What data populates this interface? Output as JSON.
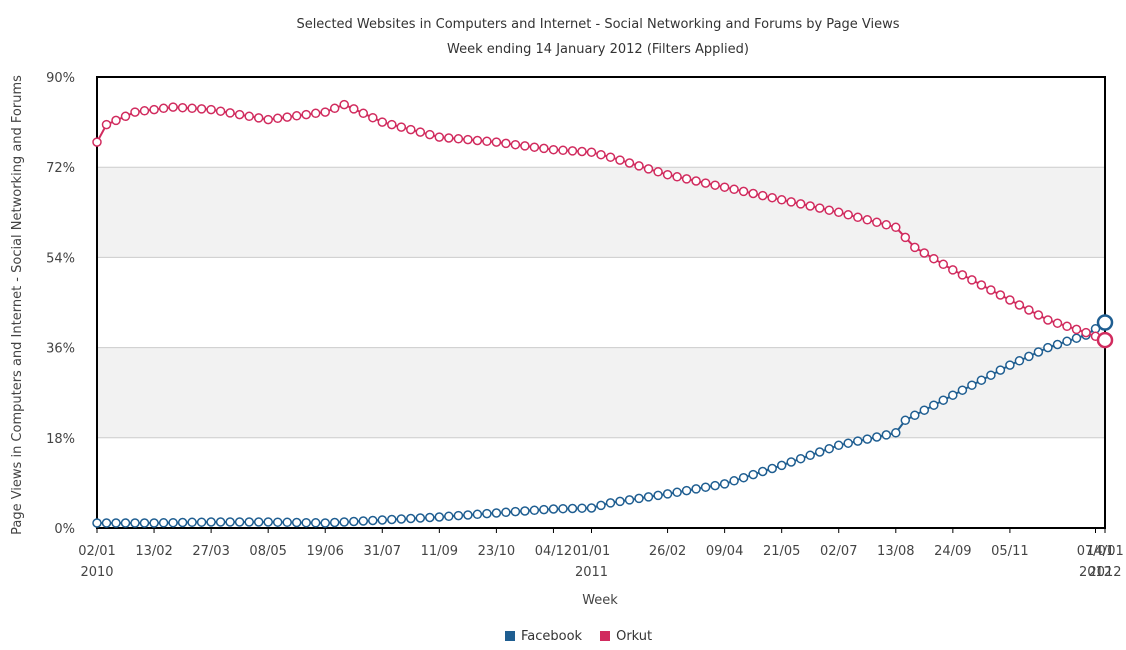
{
  "chart_data": {
    "type": "line",
    "title": "Selected Websites in Computers and Internet - Social Networking and Forums by Page Views",
    "subtitle": "Week ending 14 January 2012 (Filters Applied)",
    "xlabel": "Week",
    "ylabel": "Page Views in Computers and Internet - Social Networking and Forums",
    "ylim": [
      0,
      90
    ],
    "y_ticks": [
      "0%",
      "18%",
      "36%",
      "54%",
      "72%",
      "90%"
    ],
    "x_range": [
      "2010-01-02",
      "2012-01-14"
    ],
    "x_ticks": [
      {
        "date": "2010-01-02",
        "label": "02/01",
        "sub": "2010"
      },
      {
        "date": "2010-02-13",
        "label": "13/02",
        "sub": ""
      },
      {
        "date": "2010-03-27",
        "label": "27/03",
        "sub": ""
      },
      {
        "date": "2010-05-08",
        "label": "08/05",
        "sub": ""
      },
      {
        "date": "2010-06-19",
        "label": "19/06",
        "sub": ""
      },
      {
        "date": "2010-07-31",
        "label": "31/07",
        "sub": ""
      },
      {
        "date": "2010-09-11",
        "label": "11/09",
        "sub": ""
      },
      {
        "date": "2010-10-23",
        "label": "23/10",
        "sub": ""
      },
      {
        "date": "2010-12-04",
        "label": "04/12",
        "sub": ""
      },
      {
        "date": "2011-01-01",
        "label": "01/01",
        "sub": "2011"
      },
      {
        "date": "2011-02-26",
        "label": "26/02",
        "sub": ""
      },
      {
        "date": "2011-04-09",
        "label": "09/04",
        "sub": ""
      },
      {
        "date": "2011-05-21",
        "label": "21/05",
        "sub": ""
      },
      {
        "date": "2011-07-02",
        "label": "02/07",
        "sub": ""
      },
      {
        "date": "2011-08-13",
        "label": "13/08",
        "sub": ""
      },
      {
        "date": "2011-09-24",
        "label": "24/09",
        "sub": ""
      },
      {
        "date": "2011-11-05",
        "label": "05/11",
        "sub": ""
      },
      {
        "date": "2012-01-07",
        "label": "07/01",
        "sub": "2012"
      },
      {
        "date": "2012-01-14",
        "label": "14/01",
        "sub": "2012"
      }
    ],
    "grid": true,
    "legend_position": "bottom-center",
    "series": [
      {
        "name": "Facebook",
        "color": "#1f5e91",
        "points": [
          [
            "2010-01-02",
            1.0
          ],
          [
            "2010-02-13",
            1.0
          ],
          [
            "2010-03-27",
            1.2
          ],
          [
            "2010-05-08",
            1.2
          ],
          [
            "2010-06-19",
            1.0
          ],
          [
            "2010-07-31",
            1.6
          ],
          [
            "2010-09-11",
            2.2
          ],
          [
            "2010-10-23",
            3.0
          ],
          [
            "2010-12-04",
            3.8
          ],
          [
            "2011-01-01",
            4.0
          ],
          [
            "2011-01-15",
            5.0
          ],
          [
            "2011-02-26",
            6.8
          ],
          [
            "2011-04-09",
            8.8
          ],
          [
            "2011-05-21",
            12.5
          ],
          [
            "2011-07-02",
            16.5
          ],
          [
            "2011-08-13",
            19.0
          ],
          [
            "2011-08-20",
            21.5
          ],
          [
            "2011-09-24",
            26.5
          ],
          [
            "2011-11-05",
            32.5
          ],
          [
            "2011-12-03",
            36.0
          ],
          [
            "2011-12-31",
            38.5
          ],
          [
            "2012-01-14",
            41.0
          ]
        ]
      },
      {
        "name": "Orkut",
        "color": "#d12b5e",
        "points": [
          [
            "2010-01-02",
            77.0
          ],
          [
            "2010-01-09",
            80.5
          ],
          [
            "2010-01-30",
            83.0
          ],
          [
            "2010-02-27",
            84.0
          ],
          [
            "2010-03-27",
            83.5
          ],
          [
            "2010-05-08",
            81.5
          ],
          [
            "2010-06-19",
            83.0
          ],
          [
            "2010-07-03",
            84.5
          ],
          [
            "2010-07-31",
            81.0
          ],
          [
            "2010-09-11",
            78.0
          ],
          [
            "2010-10-23",
            77.0
          ],
          [
            "2010-12-04",
            75.5
          ],
          [
            "2011-01-01",
            75.0
          ],
          [
            "2011-01-15",
            74.0
          ],
          [
            "2011-02-26",
            70.5
          ],
          [
            "2011-04-09",
            68.0
          ],
          [
            "2011-05-21",
            65.5
          ],
          [
            "2011-07-02",
            63.0
          ],
          [
            "2011-08-13",
            60.0
          ],
          [
            "2011-08-27",
            56.0
          ],
          [
            "2011-09-24",
            51.5
          ],
          [
            "2011-11-05",
            45.5
          ],
          [
            "2011-12-03",
            41.5
          ],
          [
            "2011-12-31",
            39.0
          ],
          [
            "2012-01-14",
            37.5
          ]
        ]
      }
    ]
  },
  "legend": {
    "items": [
      {
        "label": "Facebook",
        "color": "#1f5e91"
      },
      {
        "label": "Orkut",
        "color": "#d12b5e"
      }
    ]
  }
}
